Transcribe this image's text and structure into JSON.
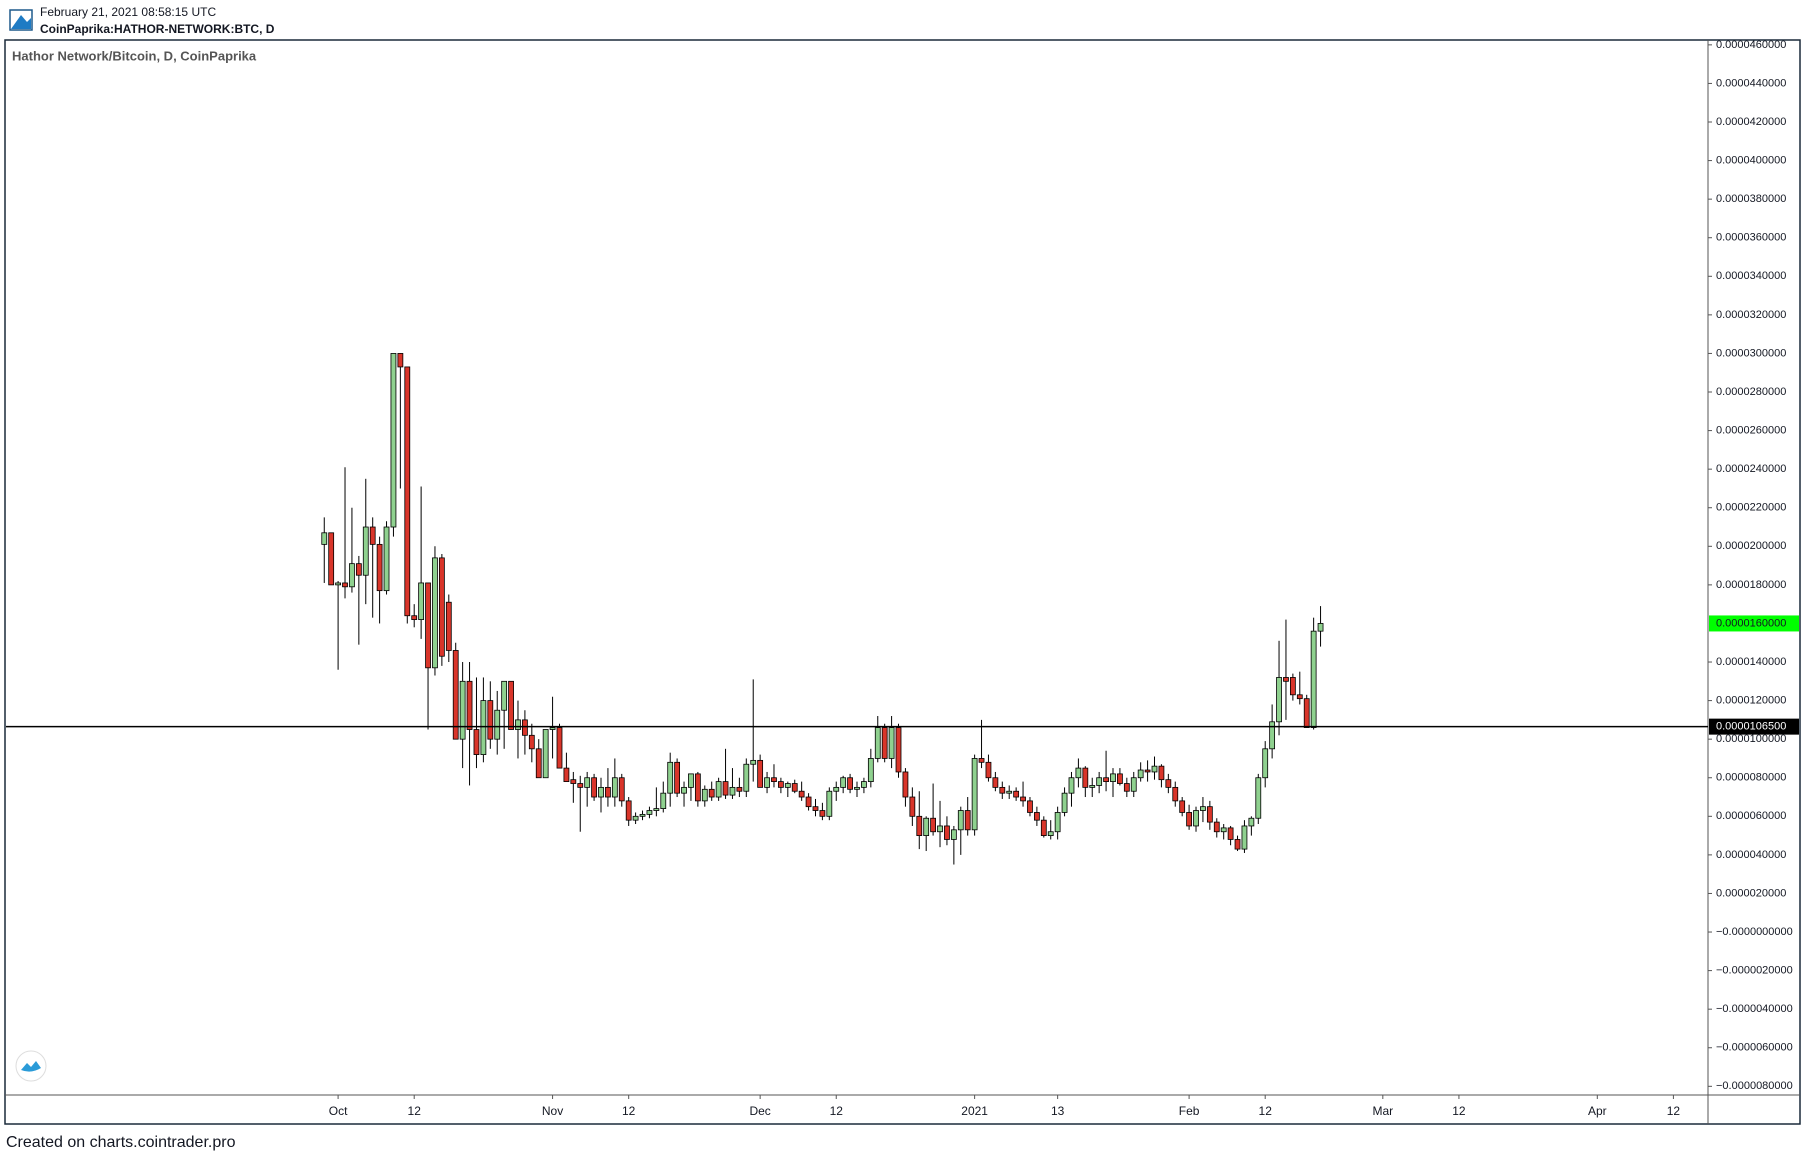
{
  "header": {
    "timestamp": "February 21, 2021 08:58:15 UTC",
    "symbol": "CoinPaprika:HATHOR-NETWORK:BTC, D"
  },
  "footer": "Created on charts.cointrader.pro",
  "chart_data": {
    "type": "candlestick",
    "title": "Hathor Network/Bitcoin, D, CoinPaprika",
    "up_color": "#8fd18f",
    "down_color": "#d9352a",
    "outline_color": "#000000",
    "xlim": [
      "2020-08-14",
      "2021-04-17"
    ],
    "xticks": [
      {
        "value": "2020-10-01",
        "label": "Oct"
      },
      {
        "value": "2020-10-12",
        "label": "12"
      },
      {
        "value": "2020-11-01",
        "label": "Nov"
      },
      {
        "value": "2020-11-12",
        "label": "12"
      },
      {
        "value": "2020-12-01",
        "label": "Dec"
      },
      {
        "value": "2020-12-12",
        "label": "12"
      },
      {
        "value": "2021-01-01",
        "label": "2021"
      },
      {
        "value": "2021-01-13",
        "label": "13"
      },
      {
        "value": "2021-02-01",
        "label": "Feb"
      },
      {
        "value": "2021-02-12",
        "label": "12"
      },
      {
        "value": "2021-03-01",
        "label": "Mar"
      },
      {
        "value": "2021-03-12",
        "label": "12"
      },
      {
        "value": "2021-04-01",
        "label": "Apr"
      },
      {
        "value": "2021-04-12",
        "label": "12"
      }
    ],
    "ylim": [
      -8.45e-06,
      4.62e-05
    ],
    "yticks": [
      {
        "value": 4.6e-05,
        "label": "0.0000460000"
      },
      {
        "value": 4.4e-05,
        "label": "0.0000440000"
      },
      {
        "value": 4.2e-05,
        "label": "0.0000420000"
      },
      {
        "value": 4e-05,
        "label": "0.0000400000"
      },
      {
        "value": 3.8e-05,
        "label": "0.0000380000"
      },
      {
        "value": 3.6e-05,
        "label": "0.0000360000"
      },
      {
        "value": 3.4e-05,
        "label": "0.0000340000"
      },
      {
        "value": 3.2e-05,
        "label": "0.0000320000"
      },
      {
        "value": 3e-05,
        "label": "0.0000300000"
      },
      {
        "value": 2.8e-05,
        "label": "0.0000280000"
      },
      {
        "value": 2.6e-05,
        "label": "0.0000260000"
      },
      {
        "value": 2.4e-05,
        "label": "0.0000240000"
      },
      {
        "value": 2.2e-05,
        "label": "0.0000220000"
      },
      {
        "value": 2e-05,
        "label": "0.0000200000"
      },
      {
        "value": 1.8e-05,
        "label": "0.0000180000"
      },
      {
        "value": 1.4e-05,
        "label": "0.0000140000"
      },
      {
        "value": 1.2e-05,
        "label": "0.0000120000"
      },
      {
        "value": 1e-05,
        "label": "0.0000100000"
      },
      {
        "value": 8e-06,
        "label": "0.0000080000"
      },
      {
        "value": 6e-06,
        "label": "0.0000060000"
      },
      {
        "value": 4e-06,
        "label": "0.0000040000"
      },
      {
        "value": 2e-06,
        "label": "0.0000020000"
      },
      {
        "value": 0,
        "label": "−0.0000000000"
      },
      {
        "value": -2e-06,
        "label": "−0.0000020000"
      },
      {
        "value": -4e-06,
        "label": "−0.0000040000"
      },
      {
        "value": -6e-06,
        "label": "−0.0000060000"
      },
      {
        "value": -8e-06,
        "label": "−0.0000080000"
      }
    ],
    "last_price": {
      "value": 1.6e-05,
      "label": "0.0000160000",
      "color": "#00ff00"
    },
    "hline": {
      "value": 1.065e-05,
      "label": "0.0000106500",
      "color": "#000000"
    },
    "x": [
      "2020-09-29",
      "2020-09-30",
      "2020-10-01",
      "2020-10-02",
      "2020-10-03",
      "2020-10-04",
      "2020-10-05",
      "2020-10-06",
      "2020-10-07",
      "2020-10-08",
      "2020-10-09",
      "2020-10-10",
      "2020-10-11",
      "2020-10-12",
      "2020-10-13",
      "2020-10-14",
      "2020-10-15",
      "2020-10-16",
      "2020-10-17",
      "2020-10-18",
      "2020-10-19",
      "2020-10-20",
      "2020-10-21",
      "2020-10-22",
      "2020-10-23",
      "2020-10-24",
      "2020-10-25",
      "2020-10-26",
      "2020-10-27",
      "2020-10-28",
      "2020-10-29",
      "2020-10-30",
      "2020-10-31",
      "2020-11-01",
      "2020-11-02",
      "2020-11-03",
      "2020-11-04",
      "2020-11-05",
      "2020-11-06",
      "2020-11-07",
      "2020-11-08",
      "2020-11-09",
      "2020-11-10",
      "2020-11-11",
      "2020-11-12",
      "2020-11-13",
      "2020-11-14",
      "2020-11-15",
      "2020-11-16",
      "2020-11-17",
      "2020-11-18",
      "2020-11-19",
      "2020-11-20",
      "2020-11-21",
      "2020-11-22",
      "2020-11-23",
      "2020-11-24",
      "2020-11-25",
      "2020-11-26",
      "2020-11-27",
      "2020-11-28",
      "2020-11-29",
      "2020-11-30",
      "2020-12-01",
      "2020-12-02",
      "2020-12-03",
      "2020-12-04",
      "2020-12-05",
      "2020-12-06",
      "2020-12-07",
      "2020-12-08",
      "2020-12-09",
      "2020-12-10",
      "2020-12-11",
      "2020-12-12",
      "2020-12-13",
      "2020-12-14",
      "2020-12-15",
      "2020-12-16",
      "2020-12-17",
      "2020-12-18",
      "2020-12-19",
      "2020-12-20",
      "2020-12-21",
      "2020-12-22",
      "2020-12-23",
      "2020-12-24",
      "2020-12-25",
      "2020-12-26",
      "2020-12-27",
      "2020-12-28",
      "2020-12-29",
      "2020-12-30",
      "2020-12-31",
      "2021-01-01",
      "2021-01-02",
      "2021-01-03",
      "2021-01-04",
      "2021-01-05",
      "2021-01-06",
      "2021-01-07",
      "2021-01-08",
      "2021-01-09",
      "2021-01-10",
      "2021-01-11",
      "2021-01-12",
      "2021-01-13",
      "2021-01-14",
      "2021-01-15",
      "2021-01-16",
      "2021-01-17",
      "2021-01-18",
      "2021-01-19",
      "2021-01-20",
      "2021-01-21",
      "2021-01-22",
      "2021-01-23",
      "2021-01-24",
      "2021-01-25",
      "2021-01-26",
      "2021-01-27",
      "2021-01-28",
      "2021-01-29",
      "2021-01-30",
      "2021-01-31",
      "2021-02-01",
      "2021-02-02",
      "2021-02-03",
      "2021-02-04",
      "2021-02-05",
      "2021-02-06",
      "2021-02-07",
      "2021-02-08",
      "2021-02-09",
      "2021-02-10",
      "2021-02-11",
      "2021-02-12",
      "2021-02-13",
      "2021-02-14",
      "2021-02-15",
      "2021-02-16",
      "2021-02-17",
      "2021-02-18",
      "2021-02-19",
      "2021-02-20"
    ],
    "ohlc": [
      [
        2.01e-05,
        2.15e-05,
        1.81e-05,
        2.07e-05
      ],
      [
        2.07e-05,
        2.07e-05,
        1.8e-05,
        1.8e-05
      ],
      [
        1.8e-05,
        1.82e-05,
        1.36e-05,
        1.81e-05
      ],
      [
        1.81e-05,
        2.41e-05,
        1.73e-05,
        1.79e-05
      ],
      [
        1.79e-05,
        2.2e-05,
        1.76e-05,
        1.91e-05
      ],
      [
        1.91e-05,
        1.95e-05,
        1.49e-05,
        1.85e-05
      ],
      [
        1.85e-05,
        2.35e-05,
        1.7e-05,
        2.1e-05
      ],
      [
        2.1e-05,
        2.15e-05,
        1.63e-05,
        2.01e-05
      ],
      [
        2.01e-05,
        2.05e-05,
        1.6e-05,
        1.77e-05
      ],
      [
        1.77e-05,
        2.13e-05,
        1.75e-05,
        2.1e-05
      ],
      [
        2.1e-05,
        3e-05,
        2.05e-05,
        3e-05
      ],
      [
        3e-05,
        3e-05,
        2.3e-05,
        2.93e-05
      ],
      [
        2.93e-05,
        2.93e-05,
        1.6e-05,
        1.64e-05
      ],
      [
        1.64e-05,
        1.7e-05,
        1.58e-05,
        1.62e-05
      ],
      [
        1.62e-05,
        2.31e-05,
        1.52e-05,
        1.81e-05
      ],
      [
        1.81e-05,
        1.81e-05,
        1.05e-05,
        1.37e-05
      ],
      [
        1.37e-05,
        2e-05,
        1.33e-05,
        1.94e-05
      ],
      [
        1.94e-05,
        1.96e-05,
        1.38e-05,
        1.43e-05
      ],
      [
        1.71e-05,
        1.75e-05,
        1.4e-05,
        1.46e-05
      ],
      [
        1.46e-05,
        1.5e-05,
        1e-05,
        1e-05
      ],
      [
        1e-05,
        1.4e-05,
        8.5e-06,
        1.3e-05
      ],
      [
        1.3e-05,
        1.4e-05,
        7.6e-06,
        1.05e-05
      ],
      [
        1.05e-05,
        1.32e-05,
        8.5e-06,
        9.2e-06
      ],
      [
        9.2e-06,
        1.32e-05,
        8.8e-06,
        1.2e-05
      ],
      [
        1.2e-05,
        1.3e-05,
        9.5e-06,
        1e-05
      ],
      [
        1e-05,
        1.25e-05,
        9.2e-06,
        1.15e-05
      ],
      [
        1.15e-05,
        1.3e-05,
        9.5e-06,
        1.3e-05
      ],
      [
        1.3e-05,
        1.3e-05,
        1.05e-05,
        1.05e-05
      ],
      [
        1.05e-05,
        1.2e-05,
        9e-06,
        1.1e-05
      ],
      [
        1.1e-05,
        1.15e-05,
        9.2e-06,
        1.02e-05
      ],
      [
        1.02e-05,
        1.08e-05,
        8.8e-06,
        9.5e-06
      ],
      [
        9.5e-06,
        1e-05,
        8e-06,
        8e-06
      ],
      [
        8e-06,
        1.05e-05,
        8e-06,
        1.05e-05
      ],
      [
        1.05e-05,
        1.22e-05,
        9e-06,
        1.06e-05
      ],
      [
        1.06e-05,
        1.08e-05,
        8.5e-06,
        8.5e-06
      ],
      [
        8.5e-06,
        9.3e-06,
        7.8e-06,
        7.8e-06
      ],
      [
        7.9e-06,
        8.3e-06,
        6.7e-06,
        7.7e-06
      ],
      [
        7.7e-06,
        8.1e-06,
        5.2e-06,
        7.5e-06
      ],
      [
        7.5e-06,
        8.3e-06,
        6.5e-06,
        8e-06
      ],
      [
        8e-06,
        8.2e-06,
        6.8e-06,
        7e-06
      ],
      [
        7e-06,
        8e-06,
        6.2e-06,
        7.5e-06
      ],
      [
        7.5e-06,
        8.5e-06,
        6.5e-06,
        7e-06
      ],
      [
        7e-06,
        9e-06,
        6.5e-06,
        8e-06
      ],
      [
        8e-06,
        8.2e-06,
        6.5e-06,
        6.8e-06
      ],
      [
        6.8e-06,
        7e-06,
        5.5e-06,
        5.8e-06
      ],
      [
        5.8e-06,
        6.2e-06,
        5.6e-06,
        6e-06
      ],
      [
        6e-06,
        6.3e-06,
        5.8e-06,
        6.1e-06
      ],
      [
        6.1e-06,
        6.5e-06,
        5.9e-06,
        6.3e-06
      ],
      [
        6.3e-06,
        7.5e-06,
        6e-06,
        6.4e-06
      ],
      [
        6.4e-06,
        7.8e-06,
        6.2e-06,
        7.2e-06
      ],
      [
        7.2e-06,
        9.3e-06,
        6.5e-06,
        8.8e-06
      ],
      [
        8.8e-06,
        9e-06,
        7e-06,
        7.2e-06
      ],
      [
        7.2e-06,
        7.8e-06,
        6.5e-06,
        7.5e-06
      ],
      [
        7.5e-06,
        8.2e-06,
        6.8e-06,
        8.2e-06
      ],
      [
        8.2e-06,
        8.3e-06,
        6.5e-06,
        6.8e-06
      ],
      [
        6.8e-06,
        7.6e-06,
        6.5e-06,
        7.4e-06
      ],
      [
        7.4e-06,
        7.8e-06,
        6.8e-06,
        7e-06
      ],
      [
        7e-06,
        8e-06,
        6.8e-06,
        7.8e-06
      ],
      [
        7.8e-06,
        9.5e-06,
        6.9e-06,
        7.1e-06
      ],
      [
        7.1e-06,
        8.5e-06,
        6.9e-06,
        7.5e-06
      ],
      [
        7.5e-06,
        8e-06,
        7e-06,
        7.3e-06
      ],
      [
        7.3e-06,
        9e-06,
        7e-06,
        8.7e-06
      ],
      [
        8.7e-06,
        1.31e-05,
        7.8e-06,
        8.9e-06
      ],
      [
        8.9e-06,
        9.2e-06,
        7.5e-06,
        7.5e-06
      ],
      [
        7.5e-06,
        8.3e-06,
        7.2e-06,
        8e-06
      ],
      [
        8e-06,
        8.7e-06,
        7.5e-06,
        7.8e-06
      ],
      [
        7.8e-06,
        8e-06,
        7.2e-06,
        7.5e-06
      ],
      [
        7.5e-06,
        7.8e-06,
        7e-06,
        7.7e-06
      ],
      [
        7.7e-06,
        7.9e-06,
        7.2e-06,
        7.3e-06
      ],
      [
        7.3e-06,
        7.8e-06,
        6.8e-06,
        7e-06
      ],
      [
        7e-06,
        7.2e-06,
        6.3e-06,
        6.5e-06
      ],
      [
        6.5e-06,
        6.9e-06,
        6e-06,
        6.3e-06
      ],
      [
        6.3e-06,
        6.7e-06,
        5.8e-06,
        6e-06
      ],
      [
        6e-06,
        7.5e-06,
        5.8e-06,
        7.3e-06
      ],
      [
        7.3e-06,
        7.8e-06,
        6.8e-06,
        7.5e-06
      ],
      [
        7.5e-06,
        8.1e-06,
        7.2e-06,
        8e-06
      ],
      [
        8e-06,
        8.2e-06,
        7.2e-06,
        7.4e-06
      ],
      [
        7.4e-06,
        7.8e-06,
        7e-06,
        7.5e-06
      ],
      [
        7.5e-06,
        8e-06,
        7.2e-06,
        7.8e-06
      ],
      [
        7.8e-06,
        9.5e-06,
        7.5e-06,
        9e-06
      ],
      [
        9e-06,
        1.12e-05,
        8.8e-06,
        1.06e-05
      ],
      [
        1.06e-05,
        1.08e-05,
        8.8e-06,
        9e-06
      ],
      [
        9e-06,
        1.12e-05,
        8.5e-06,
        1.06e-05
      ],
      [
        1.06e-05,
        1.08e-05,
        8e-06,
        8.3e-06
      ],
      [
        8.3e-06,
        8.5e-06,
        6.5e-06,
        7e-06
      ],
      [
        7e-06,
        7.5e-06,
        5.5e-06,
        6e-06
      ],
      [
        6e-06,
        7.3e-06,
        4.3e-06,
        5e-06
      ],
      [
        5e-06,
        6e-06,
        4.2e-06,
        5.9e-06
      ],
      [
        5.9e-06,
        7.7e-06,
        5e-06,
        5.2e-06
      ],
      [
        5.2e-06,
        6.8e-06,
        4.4e-06,
        5.5e-06
      ],
      [
        5.5e-06,
        6e-06,
        4.5e-06,
        4.8e-06
      ],
      [
        4.8e-06,
        5.5e-06,
        3.5e-06,
        5.3e-06
      ],
      [
        5.3e-06,
        6.5e-06,
        4e-06,
        6.3e-06
      ],
      [
        6.3e-06,
        7e-06,
        5e-06,
        5.3e-06
      ],
      [
        5.3e-06,
        9.2e-06,
        5e-06,
        9e-06
      ],
      [
        9e-06,
        1.1e-05,
        8.5e-06,
        8.8e-06
      ],
      [
        8.8e-06,
        9.2e-06,
        7.8e-06,
        8e-06
      ],
      [
        8e-06,
        8.3e-06,
        7.3e-06,
        7.5e-06
      ],
      [
        7.5e-06,
        7.8e-06,
        6.9e-06,
        7.2e-06
      ],
      [
        7.2e-06,
        7.6e-06,
        6.9e-06,
        7.3e-06
      ],
      [
        7.3e-06,
        7.5e-06,
        6.8e-06,
        7e-06
      ],
      [
        7e-06,
        7.8e-06,
        6.5e-06,
        6.8e-06
      ],
      [
        6.8e-06,
        7e-06,
        6e-06,
        6.2e-06
      ],
      [
        6.2e-06,
        6.5e-06,
        5.5e-06,
        5.8e-06
      ],
      [
        5.8e-06,
        6e-06,
        4.9e-06,
        5e-06
      ],
      [
        5e-06,
        5.8e-06,
        4.8e-06,
        5.2e-06
      ],
      [
        5.2e-06,
        6.5e-06,
        4.8e-06,
        6.2e-06
      ],
      [
        6.2e-06,
        7.5e-06,
        6e-06,
        7.2e-06
      ],
      [
        7.2e-06,
        8.3e-06,
        6.5e-06,
        8e-06
      ],
      [
        8e-06,
        9e-06,
        7.5e-06,
        8.5e-06
      ],
      [
        8.5e-06,
        8.6e-06,
        7e-06,
        7.5e-06
      ],
      [
        7.5e-06,
        8e-06,
        7e-06,
        7.6e-06
      ],
      [
        7.6e-06,
        8.3e-06,
        7.2e-06,
        8e-06
      ],
      [
        8e-06,
        9.4e-06,
        7.3e-06,
        7.8e-06
      ],
      [
        7.8e-06,
        8.5e-06,
        7e-06,
        8.2e-06
      ],
      [
        8.2e-06,
        8.5e-06,
        7.6e-06,
        7.7e-06
      ],
      [
        7.7e-06,
        8e-06,
        7e-06,
        7.3e-06
      ],
      [
        7.3e-06,
        8.3e-06,
        7e-06,
        8e-06
      ],
      [
        8e-06,
        8.8e-06,
        7.8e-06,
        8.4e-06
      ],
      [
        8.4e-06,
        8.9e-06,
        7.8e-06,
        8.3e-06
      ],
      [
        8.3e-06,
        9.1e-06,
        7.9e-06,
        8.6e-06
      ],
      [
        8.6e-06,
        8.7e-06,
        7.5e-06,
        7.9e-06
      ],
      [
        7.9e-06,
        8.2e-06,
        7.2e-06,
        7.5e-06
      ],
      [
        7.5e-06,
        7.8e-06,
        6.5e-06,
        6.8e-06
      ],
      [
        6.8e-06,
        7e-06,
        6e-06,
        6.2e-06
      ],
      [
        6.2e-06,
        6.6e-06,
        5.3e-06,
        5.5e-06
      ],
      [
        5.5e-06,
        6.5e-06,
        5.2e-06,
        6.3e-06
      ],
      [
        6.3e-06,
        7e-06,
        5.7e-06,
        6.5e-06
      ],
      [
        6.5e-06,
        6.8e-06,
        5.3e-06,
        5.7e-06
      ],
      [
        5.7e-06,
        5.9e-06,
        4.9e-06,
        5.2e-06
      ],
      [
        5.2e-06,
        5.6e-06,
        4.8e-06,
        5.4e-06
      ],
      [
        5.4e-06,
        5.5e-06,
        4.5e-06,
        4.8e-06
      ],
      [
        4.8e-06,
        5e-06,
        4.2e-06,
        4.3e-06
      ],
      [
        4.3e-06,
        5.8e-06,
        4.1e-06,
        5.5e-06
      ],
      [
        5.5e-06,
        6e-06,
        5e-06,
        5.9e-06
      ],
      [
        5.9e-06,
        8.2e-06,
        5.6e-06,
        8e-06
      ],
      [
        8e-06,
        9.9e-06,
        7.5e-06,
        9.5e-06
      ],
      [
        9.5e-06,
        1.18e-05,
        9e-06,
        1.09e-05
      ],
      [
        1.09e-05,
        1.51e-05,
        1.02e-05,
        1.32e-05
      ],
      [
        1.32e-05,
        1.62e-05,
        1.1e-05,
        1.3e-05
      ],
      [
        1.32e-05,
        1.34e-05,
        1.2e-05,
        1.23e-05
      ],
      [
        1.23e-05,
        1.35e-05,
        1.18e-05,
        1.21e-05
      ],
      [
        1.21e-05,
        1.23e-05,
        1.06e-05,
        1.06e-05
      ],
      [
        1.06e-05,
        1.63e-05,
        1.05e-05,
        1.56e-05
      ],
      [
        1.56e-05,
        1.69e-05,
        1.48e-05,
        1.6e-05
      ]
    ]
  }
}
